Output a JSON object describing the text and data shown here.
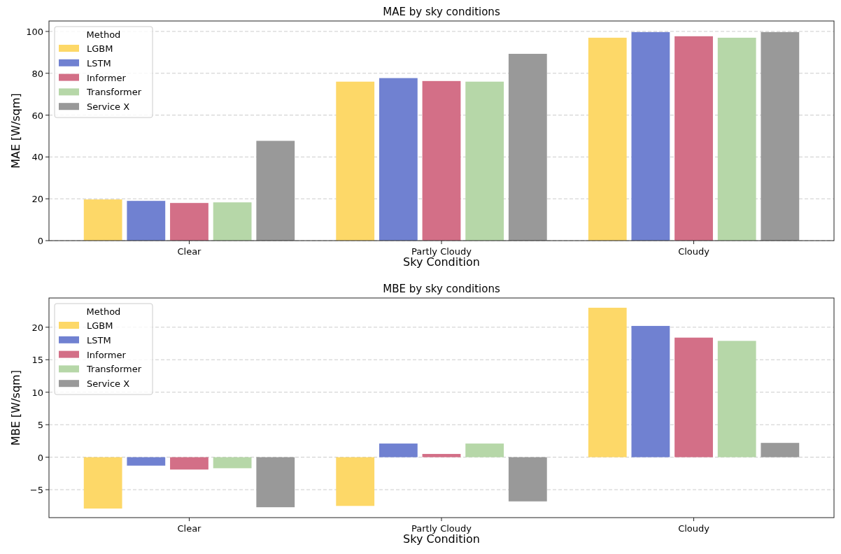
{
  "chart_data": [
    {
      "type": "bar",
      "title": "MAE by sky conditions",
      "xlabel": "Sky Condition",
      "ylabel": "MAE [W/sqm]",
      "legend_title": "Method",
      "legend": "top left",
      "grid": "y",
      "categories": [
        "Clear",
        "Partly Cloudy",
        "Cloudy"
      ],
      "ylim": [
        0,
        105
      ],
      "yticks": [
        0,
        20,
        40,
        60,
        80,
        100
      ],
      "series": [
        {
          "name": "LGBM",
          "color": "#fdd868",
          "values": [
            19.7,
            76,
            97
          ]
        },
        {
          "name": "LSTM",
          "color": "#7081d1",
          "values": [
            19,
            77.7,
            99.7
          ]
        },
        {
          "name": "Informer",
          "color": "#d36f87",
          "values": [
            18,
            76.3,
            97.7
          ]
        },
        {
          "name": "Transformer",
          "color": "#b6d7a8",
          "values": [
            18.3,
            76,
            97
          ]
        },
        {
          "name": "Service X",
          "color": "#999999",
          "values": [
            47.7,
            89.3,
            99.7
          ]
        }
      ]
    },
    {
      "type": "bar",
      "title": "MBE by sky conditions",
      "xlabel": "Sky Condition",
      "ylabel": "MBE [W/sqm]",
      "legend_title": "Method",
      "legend": "top left",
      "grid": "y",
      "categories": [
        "Clear",
        "Partly Cloudy",
        "Cloudy"
      ],
      "ylim": [
        -9.3,
        24.5
      ],
      "yticks": [
        {
          "value": -5,
          "label": "−5"
        },
        0,
        5,
        10,
        15,
        20
      ],
      "series": [
        {
          "name": "LGBM",
          "color": "#fdd868",
          "values": [
            -7.9,
            -7.5,
            23
          ]
        },
        {
          "name": "LSTM",
          "color": "#7081d1",
          "values": [
            -1.3,
            2.1,
            20.2
          ]
        },
        {
          "name": "Informer",
          "color": "#d36f87",
          "values": [
            -1.9,
            0.5,
            18.4
          ]
        },
        {
          "name": "Transformer",
          "color": "#b6d7a8",
          "values": [
            -1.7,
            2.1,
            17.9
          ]
        },
        {
          "name": "Service X",
          "color": "#999999",
          "values": [
            -7.7,
            -6.8,
            2.2
          ]
        }
      ]
    }
  ]
}
